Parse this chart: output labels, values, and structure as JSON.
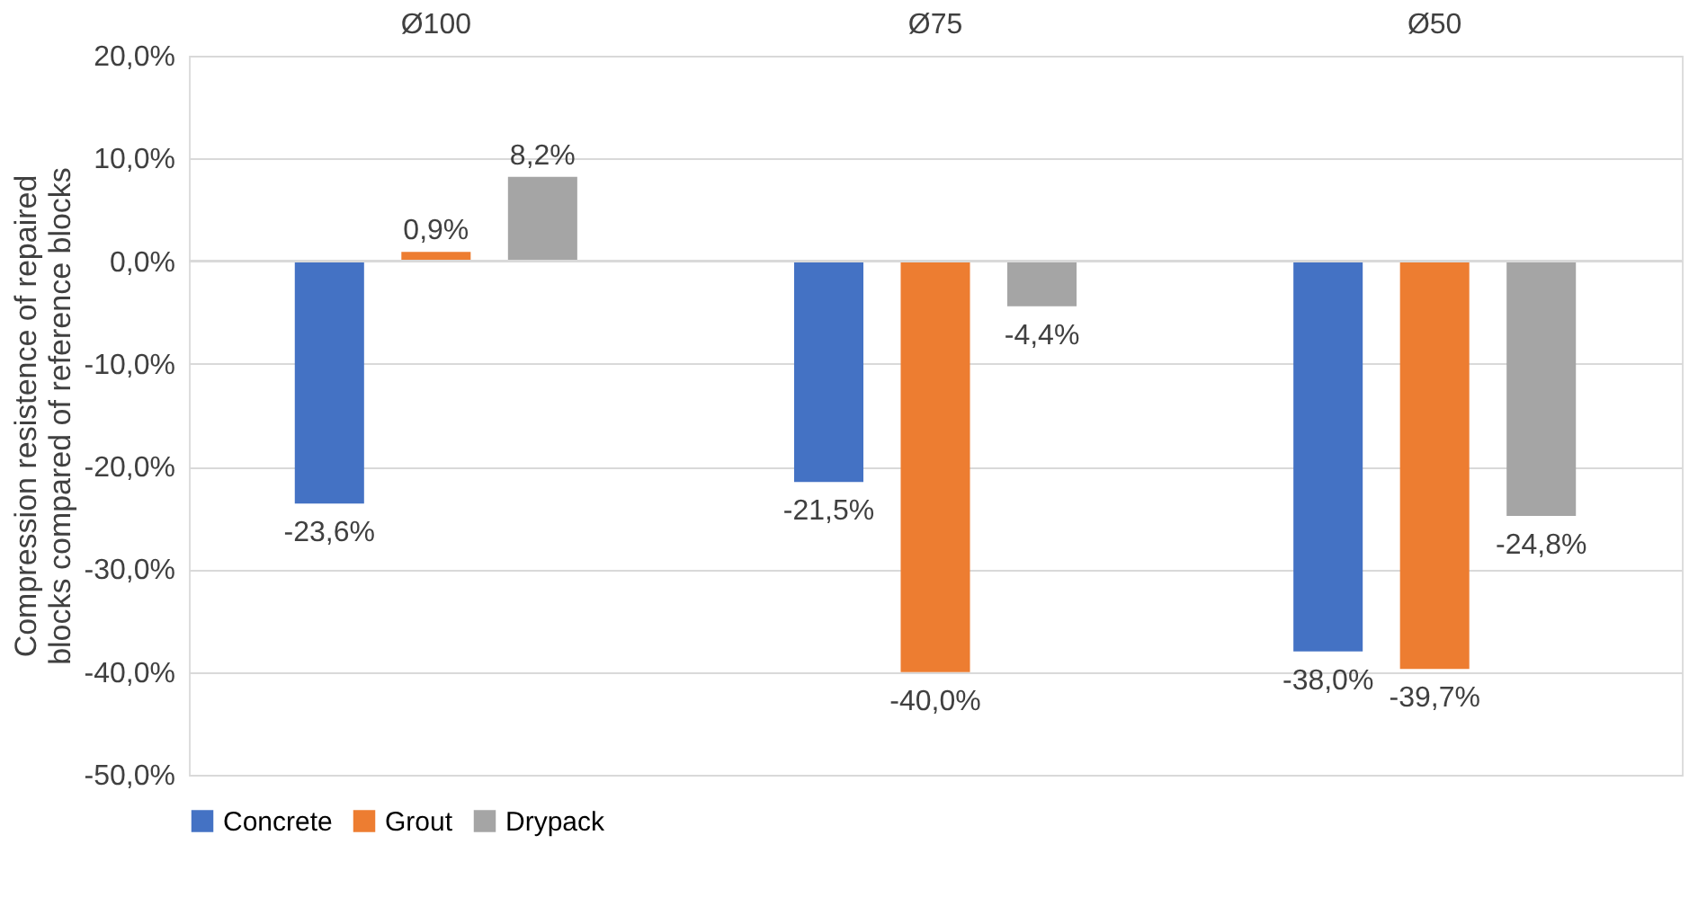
{
  "chart_data": {
    "type": "bar",
    "ylabel": "Compression resistence of repaired blocks compared of reference blocks",
    "categories": [
      "Ø100",
      "Ø75",
      "Ø50"
    ],
    "series": [
      {
        "name": "Concrete",
        "color": "#4472c4",
        "values": [
          -23.6,
          -21.5,
          -38.0
        ],
        "value_labels": [
          "-23,6%",
          "-21,5%",
          "-38,0%"
        ]
      },
      {
        "name": "Grout",
        "color": "#ed7d31",
        "values": [
          0.9,
          -40.0,
          -39.7
        ],
        "value_labels": [
          "0,9%",
          "-40,0%",
          "-39,7%"
        ]
      },
      {
        "name": "Drypack",
        "color": "#a5a5a5",
        "values": [
          8.2,
          -4.4,
          -24.8
        ],
        "value_labels": [
          "8,2%",
          "-4,4%",
          "-24,8%"
        ]
      }
    ],
    "ylim": [
      -50,
      20
    ],
    "yticks": [
      {
        "value": 20,
        "label": "20,0%"
      },
      {
        "value": 10,
        "label": "10,0%"
      },
      {
        "value": 0,
        "label": "0,0%"
      },
      {
        "value": -10,
        "label": "-10,0%"
      },
      {
        "value": -20,
        "label": "-20,0%"
      },
      {
        "value": -30,
        "label": "-30,0%"
      },
      {
        "value": -40,
        "label": "-40,0%"
      },
      {
        "value": -50,
        "label": "-50,0%"
      }
    ],
    "grid": "y",
    "legend": "bottom"
  }
}
